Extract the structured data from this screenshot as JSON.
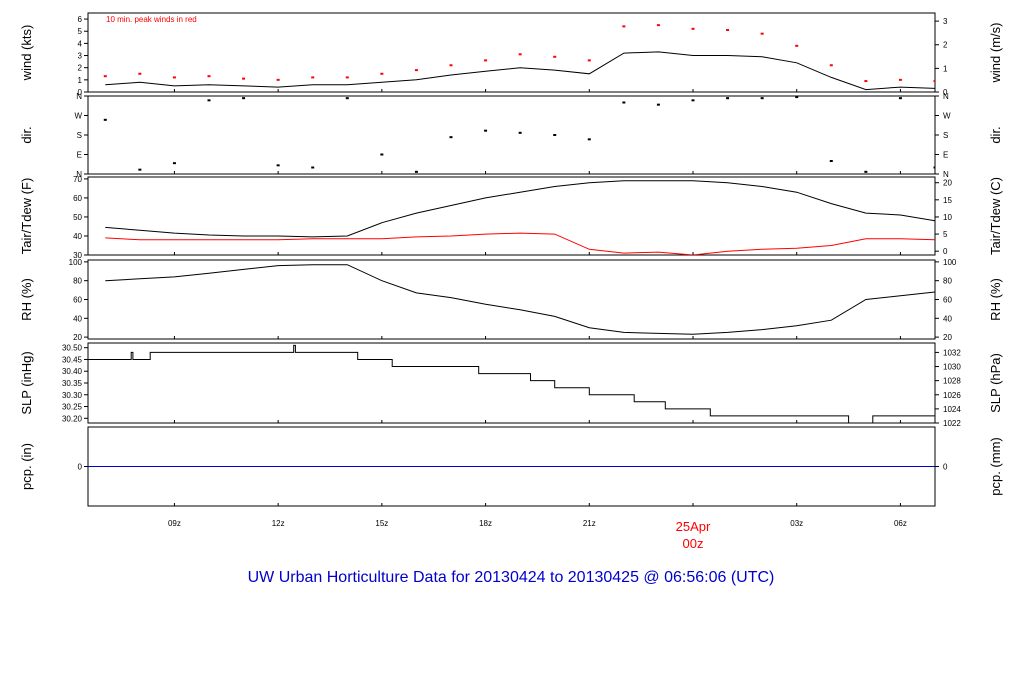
{
  "page": {
    "footer_title": "UW Urban Horticulture Data for 20130424  to  20130425 @ 06:56:06  (UTC)"
  },
  "colors": {
    "frame": "#000000",
    "black_series": "#000000",
    "peak_wind": "#ff0000",
    "dewpoint": "#ff0000",
    "precip": "#0000cc",
    "title": "#0000cc",
    "date_label": "#ff0000"
  },
  "chart_data": [
    {
      "id": "wind",
      "type": "line",
      "ylabel_left": "wind (kts)",
      "ylabel_right": "wind (m/s)",
      "annotation": "10 min. peak winds in red",
      "ylim": [
        0,
        6.5
      ],
      "yticks_left": [
        0,
        1,
        2,
        3,
        4,
        5,
        6
      ],
      "yticks_right": [
        {
          "label": "0",
          "value": 0
        },
        {
          "label": "1",
          "value": 1.944
        },
        {
          "label": "2",
          "value": 3.888
        },
        {
          "label": "3",
          "value": 5.832
        }
      ],
      "series": [
        {
          "name": "wind speed",
          "color": "#000000",
          "x": [
            7.0,
            8.0,
            9.0,
            10.0,
            11.0,
            12.0,
            13.0,
            14.0,
            15.0,
            16.0,
            17.0,
            18.0,
            19.0,
            20.0,
            21.0,
            22.0,
            23.0,
            24.0,
            25.0,
            26.0,
            27.0,
            28.0,
            29.0,
            30.0,
            31.0
          ],
          "values": [
            0.6,
            0.8,
            0.5,
            0.6,
            0.5,
            0.4,
            0.6,
            0.6,
            0.8,
            1.0,
            1.4,
            1.7,
            2.0,
            1.8,
            1.5,
            3.2,
            3.3,
            3.0,
            3.0,
            2.9,
            2.4,
            1.2,
            0.2,
            0.4,
            0.3
          ]
        },
        {
          "name": "10 min peak wind",
          "color": "#ff0000",
          "style": "dots",
          "x": [
            7.0,
            8.0,
            9.0,
            10.0,
            11.0,
            12.0,
            13.0,
            14.0,
            15.0,
            16.0,
            17.0,
            18.0,
            19.0,
            20.0,
            21.0,
            22.0,
            23.0,
            24.0,
            25.0,
            26.0,
            27.0,
            28.0,
            29.0,
            30.0,
            31.0
          ],
          "values": [
            1.3,
            1.5,
            1.2,
            1.3,
            1.1,
            1.0,
            1.2,
            1.2,
            1.5,
            1.8,
            2.2,
            2.6,
            3.1,
            2.9,
            2.6,
            5.4,
            5.5,
            5.2,
            5.1,
            4.8,
            3.8,
            2.2,
            0.9,
            1.0,
            0.9
          ]
        }
      ]
    },
    {
      "id": "direction",
      "type": "scatter",
      "ylabel_left": "dir.",
      "ylabel_right": "dir.",
      "ylim": [
        0,
        360
      ],
      "yticks_left": [
        {
          "label": "N",
          "value": 0
        },
        {
          "label": "E",
          "value": 90
        },
        {
          "label": "S",
          "value": 180
        },
        {
          "label": "W",
          "value": 270
        },
        {
          "label": "N",
          "value": 360
        }
      ],
      "series": [
        {
          "name": "wind direction",
          "color": "#000000",
          "x": [
            7.0,
            8.0,
            9.0,
            10.0,
            11.0,
            12.0,
            13.0,
            14.0,
            15.0,
            16.0,
            17.0,
            18.0,
            19.0,
            20.0,
            21.0,
            22.0,
            23.0,
            24.0,
            25.0,
            26.0,
            27.0,
            28.0,
            29.0,
            30.0,
            31.0
          ],
          "values": [
            250,
            20,
            50,
            340,
            350,
            40,
            30,
            350,
            90,
            10,
            170,
            200,
            190,
            180,
            160,
            330,
            320,
            340,
            350,
            350,
            355,
            60,
            10,
            350,
            30
          ]
        }
      ]
    },
    {
      "id": "temperature",
      "type": "line",
      "ylabel_left": "Tair/Tdew (F)",
      "ylabel_right": "Tair/Tdew (C)",
      "ylim": [
        30,
        71
      ],
      "yticks_left": [
        30,
        40,
        50,
        60,
        70
      ],
      "yticks_right": [
        {
          "label": "0",
          "value": 32
        },
        {
          "label": "5",
          "value": 41
        },
        {
          "label": "10",
          "value": 50
        },
        {
          "label": "15",
          "value": 59
        },
        {
          "label": "20",
          "value": 68
        }
      ],
      "series": [
        {
          "name": "Tair",
          "color": "#000000",
          "x": [
            7.0,
            8.0,
            9.0,
            10.0,
            11.0,
            12.0,
            13.0,
            14.0,
            15.0,
            16.0,
            17.0,
            18.0,
            19.0,
            20.0,
            21.0,
            22.0,
            23.0,
            24.0,
            25.0,
            26.0,
            27.0,
            28.0,
            29.0,
            30.0,
            31.0
          ],
          "values": [
            44.5,
            43.0,
            41.5,
            40.5,
            40.0,
            40.0,
            39.5,
            40.0,
            47.0,
            52.0,
            56.0,
            60.0,
            63.0,
            66.0,
            68.0,
            69.0,
            69.0,
            69.0,
            68.0,
            66.0,
            63.0,
            57.0,
            52.0,
            51.0,
            48.0
          ]
        },
        {
          "name": "Tdew",
          "color": "#ff0000",
          "x": [
            7.0,
            8.0,
            9.0,
            10.0,
            11.0,
            12.0,
            13.0,
            14.0,
            15.0,
            16.0,
            17.0,
            18.0,
            19.0,
            20.0,
            21.0,
            22.0,
            23.0,
            24.0,
            25.0,
            26.0,
            27.0,
            28.0,
            29.0,
            30.0,
            31.0
          ],
          "values": [
            39.0,
            38.0,
            38.0,
            38.0,
            38.0,
            38.0,
            38.5,
            38.5,
            38.5,
            39.5,
            40.0,
            41.0,
            41.5,
            41.0,
            33.0,
            31.0,
            31.5,
            30.0,
            32.0,
            33.0,
            33.5,
            35.0,
            38.5,
            38.5,
            38.0
          ]
        }
      ]
    },
    {
      "id": "humidity",
      "type": "line",
      "ylabel_left": "RH (%)",
      "ylabel_right": "RH (%)",
      "ylim": [
        18,
        102
      ],
      "yticks_left": [
        20,
        40,
        60,
        80,
        100
      ],
      "yticks_right": [
        {
          "label": "20",
          "value": 20
        },
        {
          "label": "40",
          "value": 40
        },
        {
          "label": "60",
          "value": 60
        },
        {
          "label": "80",
          "value": 80
        },
        {
          "label": "100",
          "value": 100
        }
      ],
      "series": [
        {
          "name": "RH",
          "color": "#000000",
          "x": [
            7.0,
            8.0,
            9.0,
            10.0,
            11.0,
            12.0,
            13.0,
            14.0,
            15.0,
            16.0,
            17.0,
            18.0,
            19.0,
            20.0,
            21.0,
            22.0,
            23.0,
            24.0,
            25.0,
            26.0,
            27.0,
            28.0,
            29.0,
            30.0,
            31.0
          ],
          "values": [
            80,
            82,
            84,
            88,
            92,
            96,
            97,
            97,
            80,
            67,
            62,
            55,
            49,
            42,
            30,
            25,
            24,
            23,
            25,
            28,
            32,
            38,
            60,
            64,
            68
          ]
        }
      ]
    },
    {
      "id": "pressure",
      "type": "line",
      "ylabel_left": "SLP (inHg)",
      "ylabel_right": "SLP (hPa)",
      "ylim": [
        30.18,
        30.52
      ],
      "yticks_left": [
        {
          "label": "30.20",
          "value": 30.2
        },
        {
          "label": "30.25",
          "value": 30.25
        },
        {
          "label": "30.30",
          "value": 30.3
        },
        {
          "label": "30.35",
          "value": 30.35
        },
        {
          "label": "30.40",
          "value": 30.4
        },
        {
          "label": "30.45",
          "value": 30.45
        },
        {
          "label": "30.50",
          "value": 30.5
        }
      ],
      "yticks_right": [
        {
          "label": "1022",
          "value": 30.18
        },
        {
          "label": "1024",
          "value": 30.24
        },
        {
          "label": "1026",
          "value": 30.3
        },
        {
          "label": "1028",
          "value": 30.36
        },
        {
          "label": "1030",
          "value": 30.42
        },
        {
          "label": "1032",
          "value": 30.48
        }
      ],
      "series": [
        {
          "name": "SLP",
          "color": "#000000",
          "x": [
            6.5,
            7.7,
            7.75,
            7.8,
            8.2,
            8.3,
            12.4,
            12.45,
            12.5,
            14.3,
            15.3,
            17.8,
            19.3,
            20.0,
            21.0,
            22.3,
            23.2,
            24.5,
            26.0,
            28.5,
            29.2,
            31.0
          ],
          "values": [
            30.45,
            30.45,
            30.48,
            30.45,
            30.45,
            30.48,
            30.48,
            30.51,
            30.48,
            30.45,
            30.42,
            30.39,
            30.36,
            30.33,
            30.3,
            30.27,
            30.24,
            30.21,
            30.21,
            30.18,
            30.21,
            30.21
          ]
        }
      ]
    },
    {
      "id": "precip",
      "type": "line",
      "ylabel_left": "pcp. (in)",
      "ylabel_right": "pcp. (mm)",
      "ylim": [
        -1,
        1
      ],
      "yticks_left": [
        {
          "label": "0",
          "value": 0
        }
      ],
      "yticks_right": [
        {
          "label": "0",
          "value": 0
        }
      ],
      "series": [
        {
          "name": "precipitation",
          "color": "#0000cc",
          "x": [
            6.5,
            31.0
          ],
          "values": [
            0,
            0
          ]
        }
      ]
    }
  ],
  "x_axis": {
    "xlim": [
      6.5,
      31.0
    ],
    "ticks": [
      {
        "label": "09z",
        "value": 9
      },
      {
        "label": "12z",
        "value": 12
      },
      {
        "label": "15z",
        "value": 15
      },
      {
        "label": "18z",
        "value": 18
      },
      {
        "label": "21z",
        "value": 21
      },
      {
        "label": "00z",
        "value": 24,
        "date": "25Apr"
      },
      {
        "label": "03z",
        "value": 27
      },
      {
        "label": "06z",
        "value": 30
      }
    ]
  }
}
